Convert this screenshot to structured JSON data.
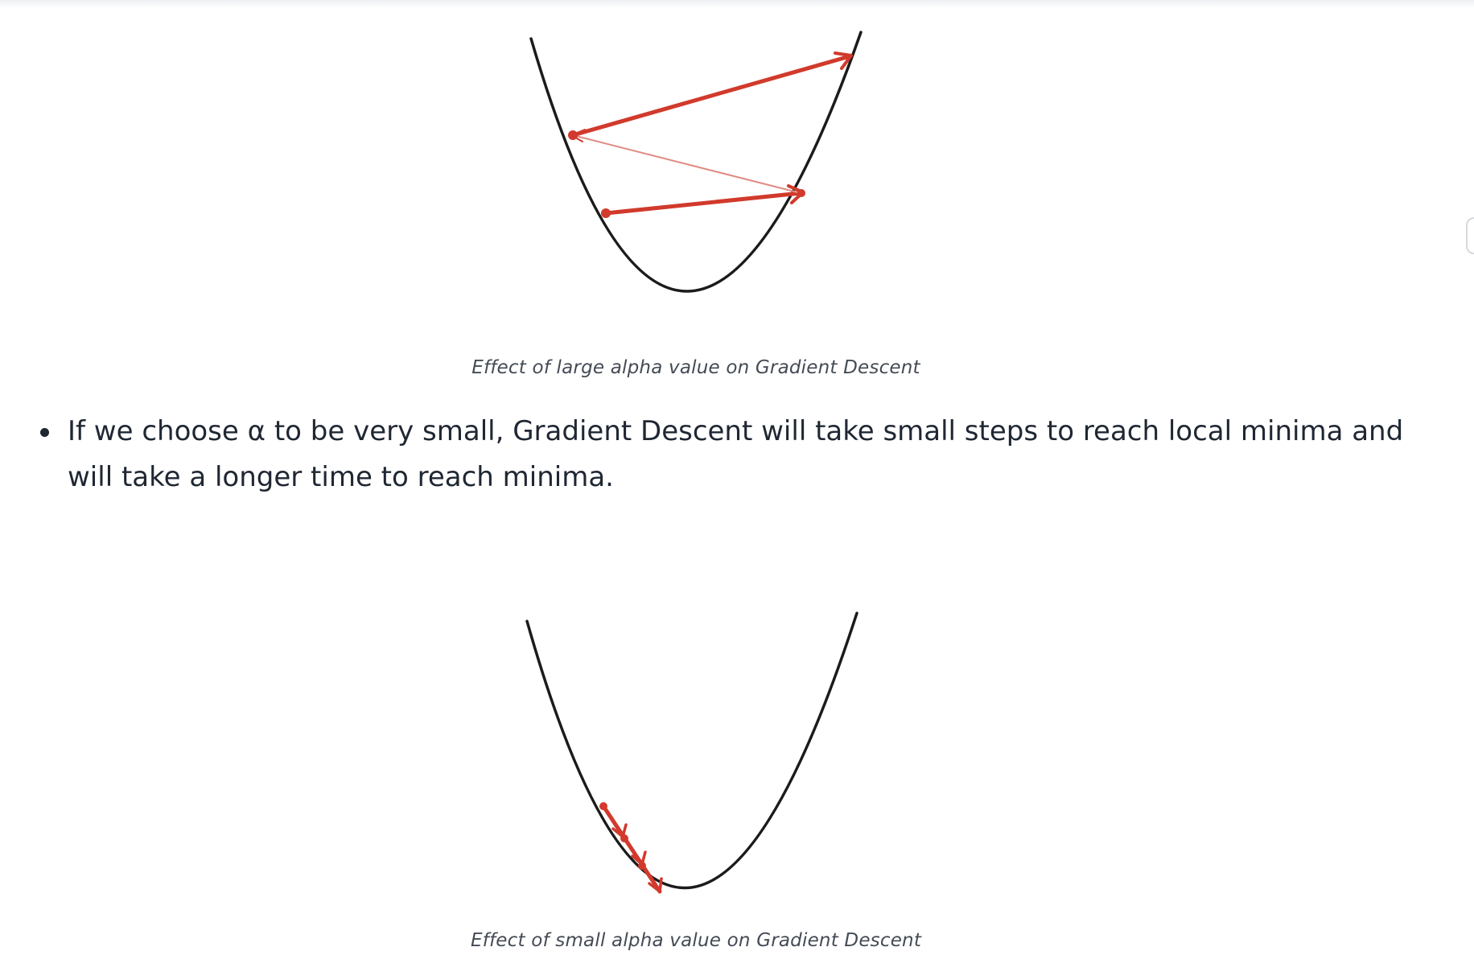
{
  "figures": [
    {
      "caption": "Effect of large alpha value on Gradient Descent",
      "colors": {
        "curve": "#1b1b1b",
        "steps": "#d13a2c"
      }
    },
    {
      "caption": "Effect of small alpha value on Gradient Descent",
      "colors": {
        "curve": "#1b1b1b",
        "steps": "#d13a2c"
      }
    }
  ],
  "content": {
    "bullets": [
      "If we choose α to be very small, Gradient Descent will take small steps to reach local minima and will take a longer time to reach minima."
    ]
  }
}
